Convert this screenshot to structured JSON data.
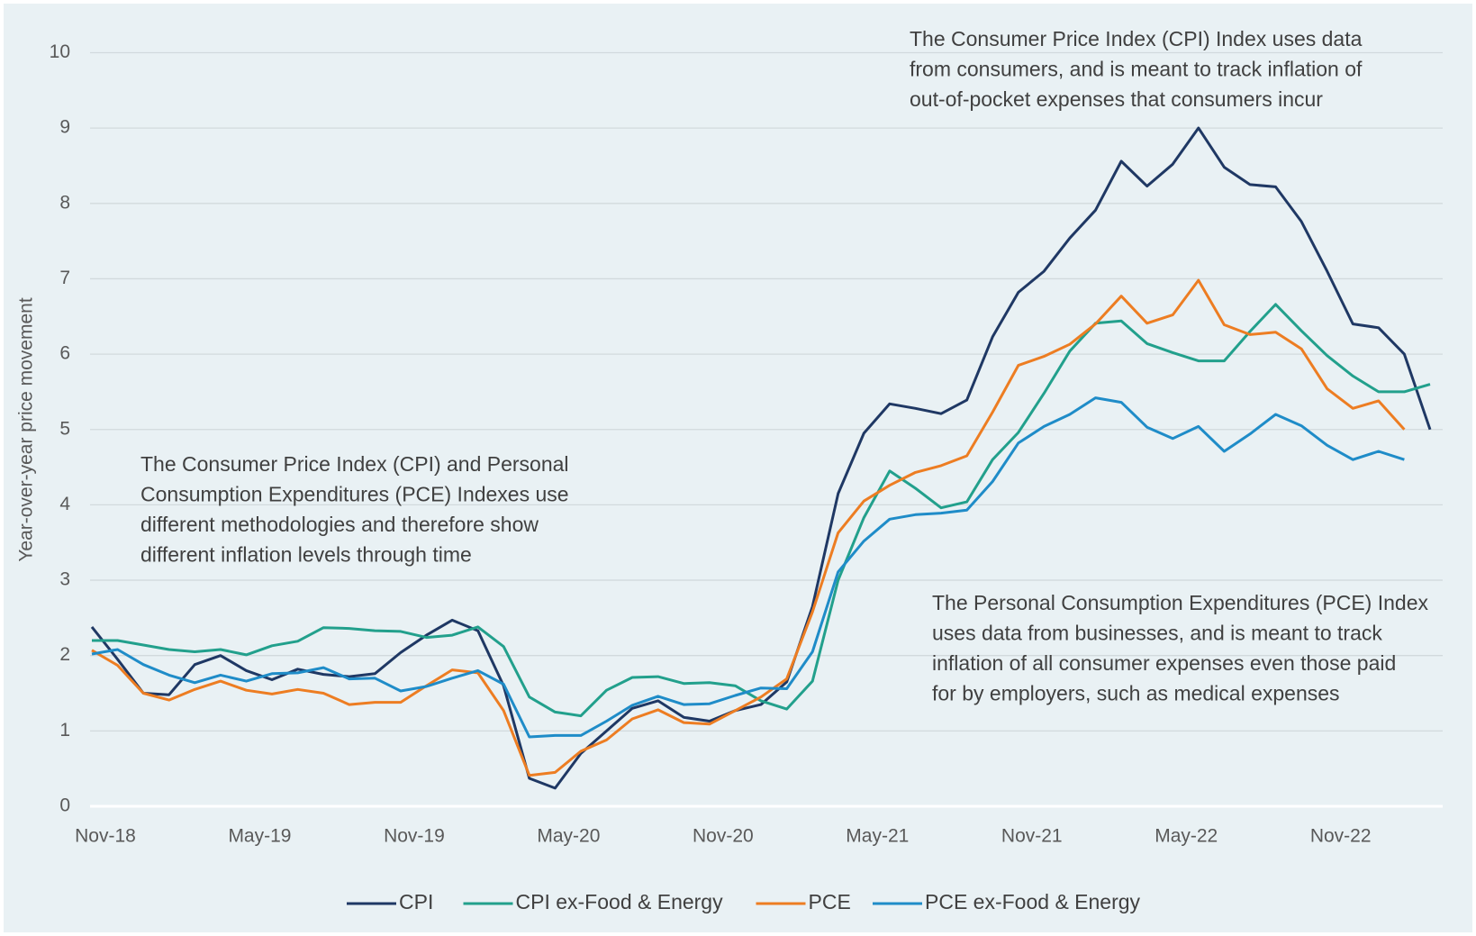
{
  "chart_data": {
    "type": "line",
    "y_label": "Year-over-year price movement",
    "categories": [
      "Nov-18",
      null,
      null,
      null,
      null,
      null,
      "May-19",
      null,
      null,
      null,
      null,
      null,
      "Nov-19",
      null,
      null,
      null,
      null,
      null,
      "May-20",
      null,
      null,
      null,
      null,
      null,
      "Nov-20",
      null,
      null,
      null,
      null,
      null,
      "May-21",
      null,
      null,
      null,
      null,
      null,
      "Nov-21",
      null,
      null,
      null,
      null,
      null,
      "May-22",
      null,
      null,
      null,
      null,
      null,
      "Nov-22",
      null,
      null,
      null,
      null
    ],
    "series": [
      {
        "name": "CPI",
        "color": "#1f3864",
        "values": [
          2.38,
          1.95,
          1.5,
          1.48,
          1.88,
          2.0,
          1.8,
          1.68,
          1.82,
          1.75,
          1.72,
          1.76,
          2.04,
          2.27,
          2.47,
          2.33,
          1.6,
          0.37,
          0.24,
          0.7,
          1.0,
          1.3,
          1.4,
          1.18,
          1.13,
          1.27,
          1.35,
          1.65,
          2.65,
          4.15,
          4.95,
          5.34,
          5.28,
          5.21,
          5.39,
          6.23,
          6.82,
          7.1,
          7.54,
          7.91,
          8.56,
          8.23,
          8.52,
          9.0,
          8.48,
          8.25,
          8.22,
          7.76,
          7.1,
          6.4,
          6.35,
          6.0,
          5.0
        ]
      },
      {
        "name": "CPI ex-Food & Energy",
        "color": "#22a08c",
        "values": [
          2.2,
          2.2,
          2.14,
          2.08,
          2.05,
          2.08,
          2.01,
          2.13,
          2.19,
          2.37,
          2.36,
          2.33,
          2.32,
          2.24,
          2.27,
          2.38,
          2.12,
          1.45,
          1.25,
          1.2,
          1.54,
          1.71,
          1.72,
          1.63,
          1.64,
          1.6,
          1.4,
          1.29,
          1.66,
          3.0,
          3.83,
          4.45,
          4.22,
          3.96,
          4.04,
          4.6,
          4.96,
          5.48,
          6.04,
          6.41,
          6.44,
          6.14,
          6.02,
          5.91,
          5.91,
          6.3,
          6.66,
          6.31,
          5.98,
          5.71,
          5.5,
          5.5,
          5.6
        ]
      },
      {
        "name": "PCE",
        "color": "#ed7d22",
        "values": [
          2.07,
          1.87,
          1.5,
          1.41,
          1.55,
          1.66,
          1.54,
          1.49,
          1.55,
          1.5,
          1.35,
          1.38,
          1.38,
          1.6,
          1.81,
          1.77,
          1.27,
          0.41,
          0.45,
          0.73,
          0.88,
          1.16,
          1.28,
          1.11,
          1.09,
          1.27,
          1.45,
          1.69,
          2.58,
          3.63,
          4.05,
          4.26,
          4.43,
          4.52,
          4.65,
          5.23,
          5.85,
          5.97,
          6.13,
          6.4,
          6.77,
          6.41,
          6.52,
          6.98,
          6.39,
          6.26,
          6.29,
          6.07,
          5.54,
          5.28,
          5.38,
          5.0,
          null
        ]
      },
      {
        "name": "PCE ex-Food & Energy",
        "color": "#1f8cc8",
        "values": [
          2.02,
          2.08,
          1.88,
          1.74,
          1.64,
          1.74,
          1.66,
          1.76,
          1.77,
          1.84,
          1.69,
          1.7,
          1.53,
          1.59,
          1.7,
          1.8,
          1.62,
          0.92,
          0.94,
          0.94,
          1.13,
          1.34,
          1.46,
          1.35,
          1.36,
          1.47,
          1.57,
          1.56,
          2.05,
          3.11,
          3.52,
          3.81,
          3.87,
          3.89,
          3.93,
          4.31,
          4.82,
          5.04,
          5.2,
          5.42,
          5.36,
          5.03,
          4.88,
          5.04,
          4.71,
          4.94,
          5.2,
          5.05,
          4.79,
          4.6,
          4.71,
          4.6,
          null
        ]
      }
    ],
    "ylim": [
      0,
      10
    ],
    "yticks": [
      0,
      1,
      2,
      3,
      4,
      5,
      6,
      7,
      8,
      9,
      10
    ],
    "grid": true,
    "legend": "bottom",
    "annotations": [
      [
        "The Consumer Price Index (CPI) Index uses data",
        "from consumers, and is meant to track inflation of",
        "out-of-pocket expenses that consumers incur"
      ],
      [
        "The Consumer Price Index (CPI) and Personal",
        "Consumption Expenditures (PCE) Indexes use",
        "different methodologies and therefore show",
        "different inflation levels through time"
      ],
      [
        "The Personal Consumption Expenditures (PCE) Index",
        "uses data from businesses, and is meant to track",
        "inflation of all consumer expenses even those paid",
        "for by employers, such as medical expenses"
      ]
    ]
  }
}
